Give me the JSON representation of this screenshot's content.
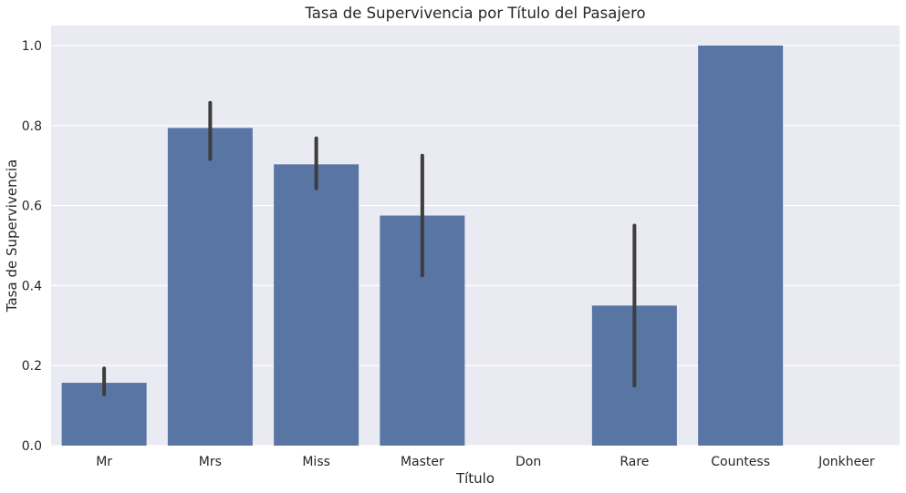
{
  "chart_data": {
    "type": "bar",
    "title": "Tasa de Supervivencia por Título del Pasajero",
    "xlabel": "Título",
    "ylabel": "Tasa de Supervivencia",
    "categories": [
      "Mr",
      "Mrs",
      "Miss",
      "Master",
      "Don",
      "Rare",
      "Countess",
      "Jonkheer"
    ],
    "values": [
      0.157,
      0.794,
      0.703,
      0.575,
      0.0,
      0.35,
      1.0,
      0.0
    ],
    "error_low": [
      0.128,
      0.716,
      0.643,
      0.425,
      0.0,
      0.15,
      1.0,
      0.0
    ],
    "error_high": [
      0.193,
      0.857,
      0.768,
      0.725,
      0.0,
      0.55,
      1.0,
      0.0
    ],
    "ylim": [
      0,
      1.05
    ],
    "yticks": [
      "0.0",
      "0.2",
      "0.4",
      "0.6",
      "0.8",
      "1.0"
    ],
    "ytick_values": [
      0,
      0.2,
      0.4,
      0.6,
      0.8,
      1.0
    ],
    "grid": true,
    "colors": {
      "bar": "#5975a4",
      "error": "#3d3d3d",
      "background": "#eaeaf2",
      "grid": "#ffffff"
    }
  }
}
